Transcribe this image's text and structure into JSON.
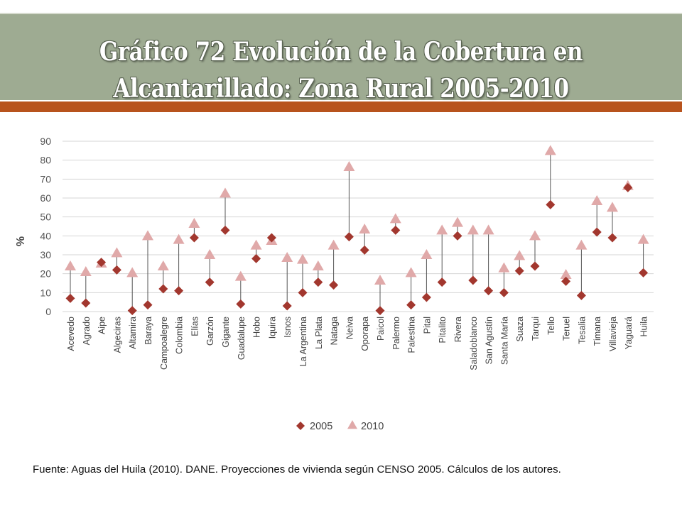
{
  "title": {
    "line1": "Gráfico 72 Evolución de la Cobertura en",
    "line2": "Alcantarillado: Zona Rural 2005-2010"
  },
  "source_note": "Fuente: Aguas del Huila (2010). DANE. Proyecciones de vivienda según CENSO 2005. Cálculos de los autores.",
  "colors": {
    "title_bar": "#9eab92",
    "accent_bar": "#b8531d",
    "series_2005": "#a2372e",
    "series_2010": "#e0a9a9"
  },
  "chart_data": {
    "type": "scatter",
    "ylabel": "%",
    "ylim": [
      0,
      90
    ],
    "yticks": [
      0,
      10,
      20,
      30,
      40,
      50,
      60,
      70,
      80,
      90
    ],
    "grid": true,
    "legend_position": "bottom",
    "categories": [
      "Acevedo",
      "Agrado",
      "Aipe",
      "Algeciras",
      "Altamira",
      "Baraya",
      "Campoalegre",
      "Colombia",
      "Elías",
      "Garzón",
      "Gigante",
      "Guadalupe",
      "Hobo",
      "Iquira",
      "Isnos",
      "La Argentina",
      "La Plata",
      "Nataga",
      "Neiva",
      "Oporapa",
      "Paicol",
      "Palermo",
      "Palestina",
      "Pital",
      "Pitalito",
      "Rivera",
      "Saladoblanco",
      "San Agustín",
      "Santa María",
      "Suaza",
      "Tarqui",
      "Tello",
      "Teruel",
      "Tesalia",
      "Timana",
      "Villavieja",
      "Yaguará",
      "Huila"
    ],
    "series": [
      {
        "name": "2005",
        "marker": "diamond",
        "values": [
          7,
          4.5,
          26,
          22,
          0.5,
          3.5,
          12,
          11,
          39,
          15.5,
          43,
          4,
          28,
          39,
          3,
          10,
          15.5,
          14,
          39.5,
          32.5,
          0.5,
          43,
          3.5,
          7.5,
          15.5,
          40,
          16.5,
          11,
          10,
          21.5,
          24,
          56.5,
          16,
          8.5,
          42,
          39,
          65.5,
          20.5
        ]
      },
      {
        "name": "2010",
        "marker": "triangle",
        "values": [
          24,
          21,
          25.5,
          31,
          20.5,
          40,
          24,
          38,
          46.5,
          30,
          62.5,
          18.5,
          35,
          37.5,
          28.5,
          27.5,
          24,
          35,
          76.5,
          43.5,
          16.5,
          49,
          20.5,
          30,
          43,
          47,
          43,
          43,
          23,
          29.5,
          40,
          85,
          19.5,
          35,
          58.5,
          55,
          66.5,
          38
        ]
      }
    ]
  }
}
